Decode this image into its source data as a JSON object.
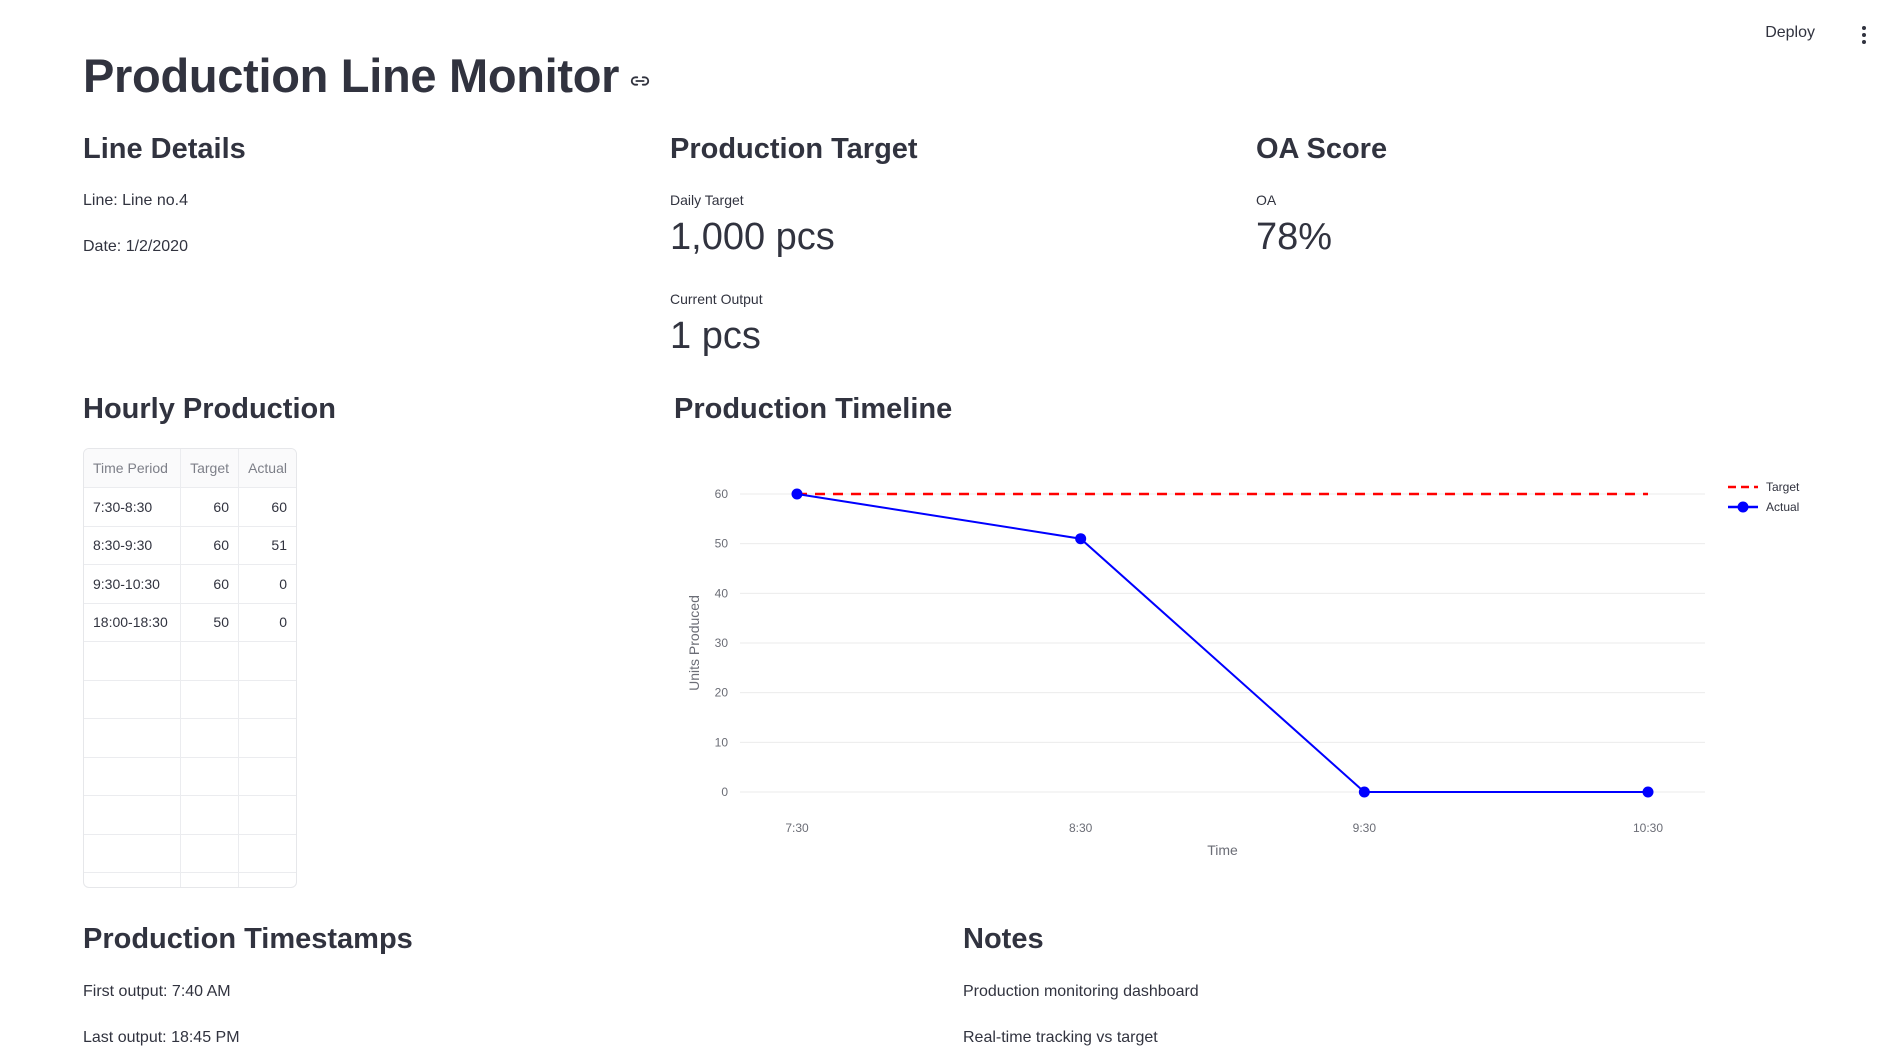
{
  "header": {
    "deploy_label": "Deploy"
  },
  "page": {
    "title": "Production Line Monitor"
  },
  "line_details": {
    "heading": "Line Details",
    "line": "Line: Line no.4",
    "date": "Date: 1/2/2020"
  },
  "production_target": {
    "heading": "Production Target",
    "daily_label": "Daily Target",
    "daily_value": "1,000 pcs",
    "current_label": "Current Output",
    "current_value": "1 pcs"
  },
  "oa_score": {
    "heading": "OA Score",
    "label": "OA",
    "value": "78%"
  },
  "hourly": {
    "heading": "Hourly Production",
    "columns": [
      "Time Period",
      "Target",
      "Actual"
    ],
    "rows": [
      [
        "7:30-8:30",
        "60",
        "60"
      ],
      [
        "8:30-9:30",
        "60",
        "51"
      ],
      [
        "9:30-10:30",
        "60",
        "0"
      ],
      [
        "18:00-18:30",
        "50",
        "0"
      ]
    ]
  },
  "timeline": {
    "heading": "Production Timeline"
  },
  "chart_data": {
    "type": "line",
    "title": "",
    "xlabel": "Time",
    "ylabel": "Units Produced",
    "categories": [
      "7:30",
      "8:30",
      "9:30",
      "10:30"
    ],
    "series": [
      {
        "name": "Target",
        "values": [
          60,
          60,
          60,
          60
        ],
        "color": "#ff0000",
        "style": "dashed"
      },
      {
        "name": "Actual",
        "values": [
          60,
          51,
          0,
          0
        ],
        "color": "#0000ff",
        "style": "solid-markers"
      }
    ],
    "ylim": [
      0,
      60
    ],
    "yticks": [
      0,
      10,
      20,
      30,
      40,
      50,
      60
    ],
    "grid": true,
    "legend": "top-right"
  },
  "timestamps": {
    "heading": "Production Timestamps",
    "first": "First output: 7:40 AM",
    "last": "Last output: 18:45 PM"
  },
  "notes": {
    "heading": "Notes",
    "line1": "Production monitoring dashboard",
    "line2": "Real-time tracking vs target"
  }
}
